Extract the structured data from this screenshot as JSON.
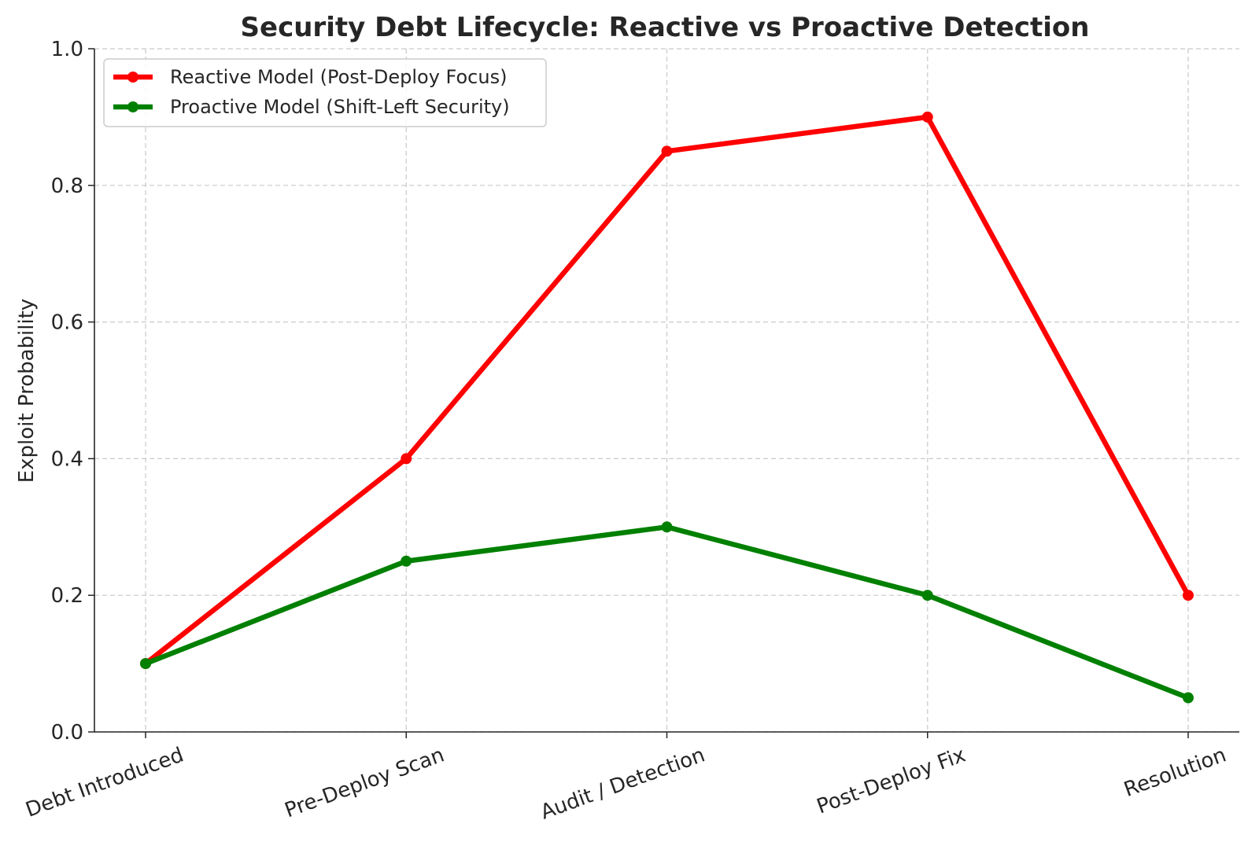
{
  "chart_data": {
    "type": "line",
    "title": "Security Debt Lifecycle: Reactive vs Proactive Detection",
    "xlabel": "",
    "ylabel": "Exploit Probability",
    "categories": [
      "Debt Introduced",
      "Pre-Deploy Scan",
      "Audit / Detection",
      "Post-Deploy Fix",
      "Resolution"
    ],
    "ylim": [
      0,
      1
    ],
    "yticks": [
      "0.0",
      "0.2",
      "0.4",
      "0.6",
      "0.8",
      "1.0"
    ],
    "grid": true,
    "legend_position": "top-left",
    "series": [
      {
        "name": "Reactive Model (Post-Deploy Focus)",
        "color": "#ff0000",
        "values": [
          0.1,
          0.4,
          0.85,
          0.9,
          0.2
        ]
      },
      {
        "name": "Proactive Model (Shift-Left Security)",
        "color": "#008000",
        "values": [
          0.1,
          0.25,
          0.3,
          0.2,
          0.05
        ]
      }
    ]
  }
}
